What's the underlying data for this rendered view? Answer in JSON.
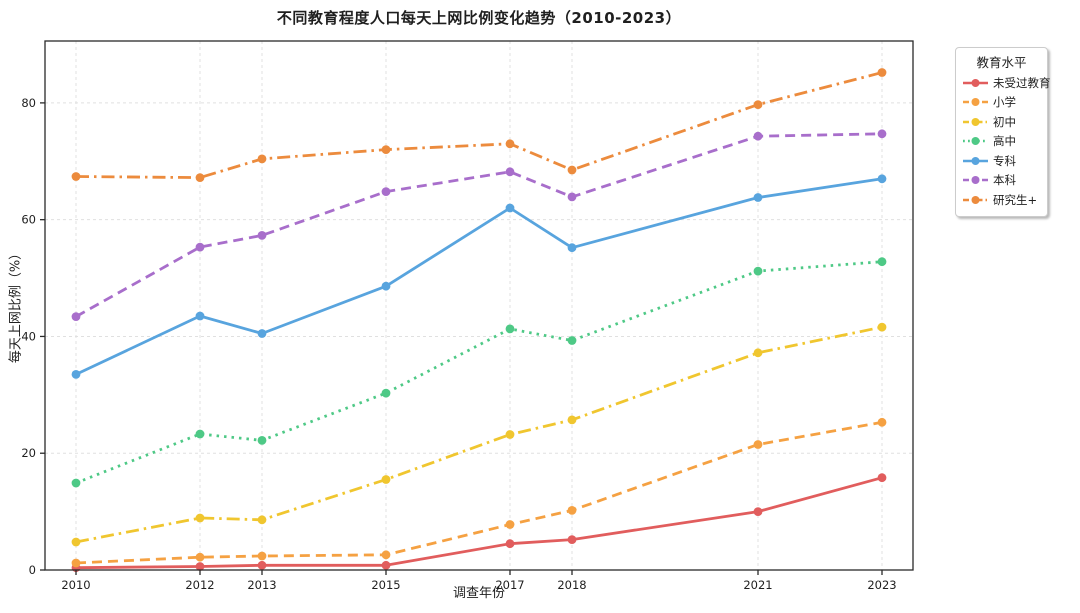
{
  "figure": {
    "background": "#ffffff"
  },
  "chart_data": {
    "type": "line",
    "title": "不同教育程度人口每天上网比例变化趋势（2010-2023）",
    "xlabel": "调查年份",
    "ylabel": "每天上网比例（%）",
    "legend_title": "教育水平",
    "legend_position": "outside-right",
    "grid": true,
    "x": [
      2010,
      2012,
      2013,
      2015,
      2017,
      2018,
      2021,
      2023
    ],
    "xlim": [
      2009.5,
      2023.5
    ],
    "ylim": [
      0,
      90.6
    ],
    "yticks": [
      0,
      20,
      40,
      60,
      80
    ],
    "series": [
      {
        "name": "未受过教育",
        "color": "#e15d5d",
        "style": "solid",
        "values": [
          0.4,
          0.6,
          0.8,
          0.8,
          4.5,
          5.2,
          10.0,
          15.8
        ]
      },
      {
        "name": "小学",
        "color": "#f5a142",
        "style": "dashed",
        "values": [
          1.2,
          2.2,
          2.4,
          2.6,
          7.8,
          10.2,
          21.5,
          25.3
        ]
      },
      {
        "name": "初中",
        "color": "#f0c62f",
        "style": "dashdot",
        "values": [
          4.8,
          8.9,
          8.6,
          15.5,
          23.2,
          25.7,
          37.2,
          41.6
        ]
      },
      {
        "name": "高中",
        "color": "#4ec986",
        "style": "dotted",
        "values": [
          14.9,
          23.3,
          22.2,
          30.3,
          41.3,
          39.3,
          51.2,
          52.8
        ]
      },
      {
        "name": "专科",
        "color": "#58a4de",
        "style": "solid",
        "values": [
          33.5,
          43.5,
          40.5,
          48.6,
          62.0,
          55.2,
          63.8,
          67.0
        ]
      },
      {
        "name": "本科",
        "color": "#a86ecb",
        "style": "dashed",
        "values": [
          43.4,
          55.3,
          57.3,
          64.8,
          68.2,
          63.9,
          74.3,
          74.7
        ]
      },
      {
        "name": "研究生+",
        "color": "#ec8b3d",
        "style": "dashdot",
        "values": [
          67.4,
          67.2,
          70.4,
          72.0,
          73.0,
          68.5,
          79.7,
          85.2
        ]
      }
    ]
  }
}
